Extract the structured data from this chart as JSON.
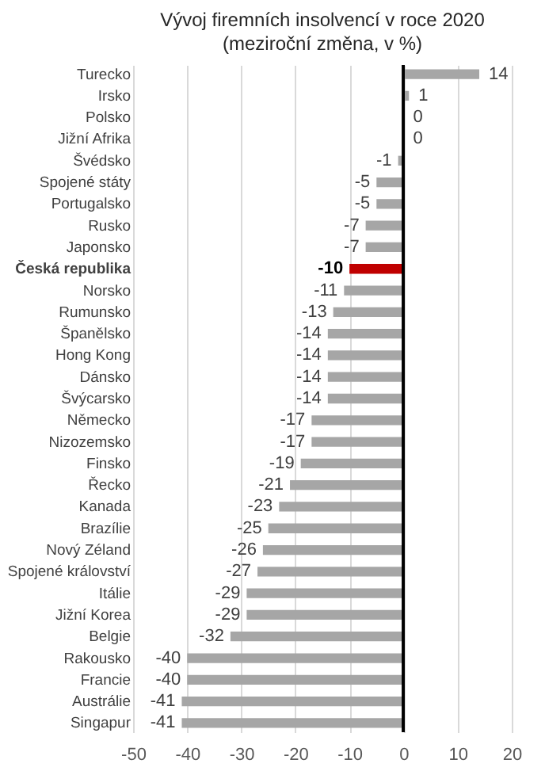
{
  "chart_data": {
    "type": "bar",
    "orientation": "horizontal",
    "title": "Vývoj firemních insolvencí v roce 2020",
    "subtitle": "(meziroční změna, v %)",
    "categories": [
      "Turecko",
      "Irsko",
      "Polsko",
      "Jižní Afrika",
      "Švédsko",
      "Spojené státy",
      "Portugalsko",
      "Rusko",
      "Japonsko",
      "Česká republika",
      "Norsko",
      "Rumunsko",
      "Španělsko",
      "Hong Kong",
      "Dánsko",
      "Švýcarsko",
      "Německo",
      "Nizozemsko",
      "Finsko",
      "Řecko",
      "Kanada",
      "Brazílie",
      "Nový Zéland",
      "Spojené království",
      "Itálie",
      "Jižní Korea",
      "Belgie",
      "Rakousko",
      "Francie",
      "Austrálie",
      "Singapur"
    ],
    "values": [
      14,
      1,
      0,
      0,
      -1,
      -5,
      -5,
      -7,
      -7,
      -10,
      -11,
      -13,
      -14,
      -14,
      -14,
      -14,
      -17,
      -17,
      -19,
      -21,
      -23,
      -25,
      -26,
      -27,
      -29,
      -29,
      -32,
      -40,
      -40,
      -41,
      -41
    ],
    "colors": [
      "#a6a6a6",
      "#a6a6a6",
      "#a6a6a6",
      "#a6a6a6",
      "#a6a6a6",
      "#a6a6a6",
      "#a6a6a6",
      "#a6a6a6",
      "#a6a6a6",
      "#c00000",
      "#a6a6a6",
      "#a6a6a6",
      "#a6a6a6",
      "#a6a6a6",
      "#a6a6a6",
      "#a6a6a6",
      "#a6a6a6",
      "#a6a6a6",
      "#a6a6a6",
      "#a6a6a6",
      "#a6a6a6",
      "#a6a6a6",
      "#a6a6a6",
      "#a6a6a6",
      "#a6a6a6",
      "#a6a6a6",
      "#a6a6a6",
      "#a6a6a6",
      "#a6a6a6",
      "#a6a6a6",
      "#a6a6a6"
    ],
    "xlim": [
      -50,
      20
    ],
    "xticks": [
      -50,
      -40,
      -30,
      -20,
      -10,
      0,
      10,
      20
    ],
    "grid": "x",
    "data_labels": true
  }
}
